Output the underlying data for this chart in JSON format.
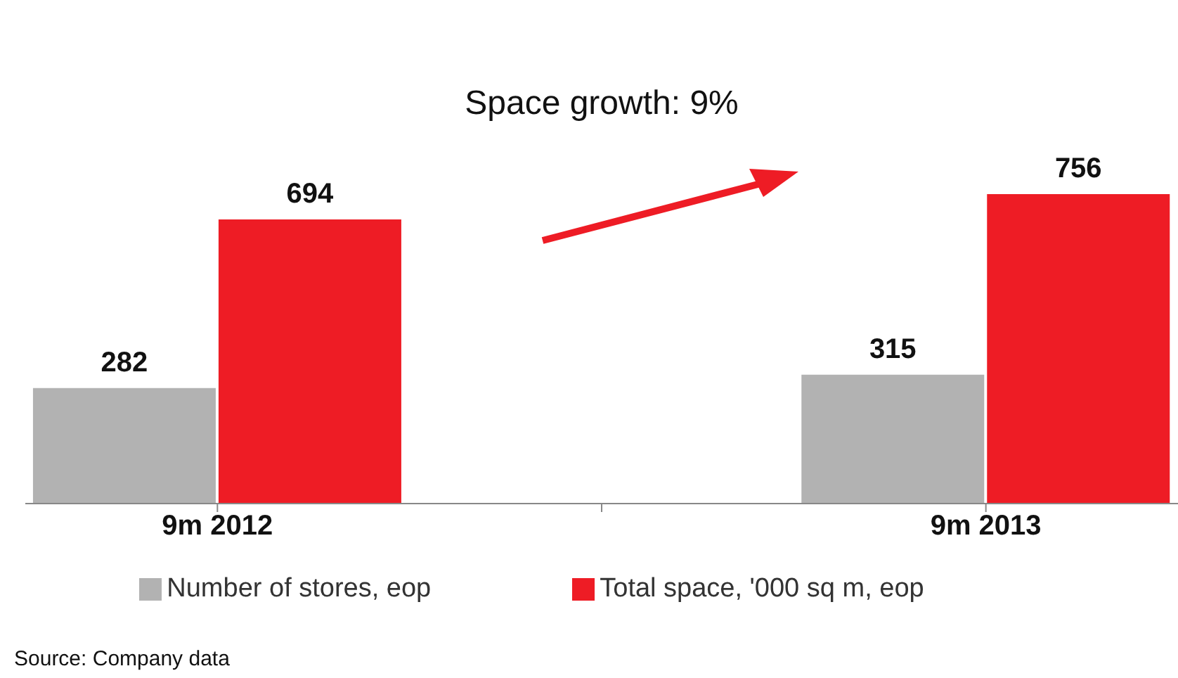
{
  "chart_data": {
    "type": "bar",
    "categories": [
      "9m 2012",
      null,
      "9m 2013"
    ],
    "series": [
      {
        "name": "Number of stores, eop",
        "color": "#b2b2b2",
        "values": [
          282,
          null,
          315
        ]
      },
      {
        "name": "Total space, '000 sq m, eop",
        "color": "#ee1c25",
        "values": [
          694,
          null,
          756
        ]
      }
    ],
    "data_labels": true,
    "legend": "bottom",
    "annotations": [
      "Space growth: 9%",
      "Source: Company data"
    ]
  }
}
